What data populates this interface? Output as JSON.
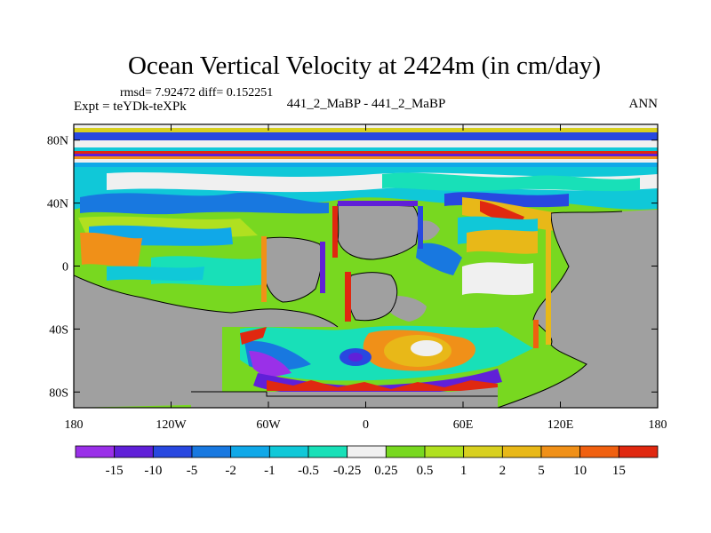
{
  "chart_data": {
    "type": "heatmap",
    "title": "Ocean Vertical Velocity at 2424m (in cm/day)",
    "stats": "rmsd= 7.92472 diff= 0.152251",
    "experiment": "Expt = teYDk-teXPk",
    "subtitle": "441_2_MaBP - 441_2_MaBP",
    "season": "ANN",
    "y_ticks": [
      {
        "value": 80,
        "label": "80N"
      },
      {
        "value": 40,
        "label": "40N"
      },
      {
        "value": 0,
        "label": "0"
      },
      {
        "value": -40,
        "label": "40S"
      },
      {
        "value": -80,
        "label": "80S"
      }
    ],
    "x_ticks": [
      {
        "value": -180,
        "label": "180"
      },
      {
        "value": -120,
        "label": "120W"
      },
      {
        "value": -60,
        "label": "60W"
      },
      {
        "value": 0,
        "label": "0"
      },
      {
        "value": 60,
        "label": "60E"
      },
      {
        "value": 120,
        "label": "120E"
      },
      {
        "value": 180,
        "label": "180"
      }
    ],
    "xlim": [
      -180,
      180
    ],
    "ylim": [
      -90,
      90
    ],
    "colorbar": {
      "colors": [
        "#9a30e8",
        "#6020d8",
        "#2848e0",
        "#1878e0",
        "#10a8e8",
        "#10c8d8",
        "#18e0b8",
        "#f0f0f0",
        "#78d820",
        "#b0e020",
        "#d8d020",
        "#e8b818",
        "#f09018",
        "#f06010",
        "#e02810"
      ],
      "levels": [
        "-15",
        "-10",
        "-5",
        "-2",
        "-1",
        "-0.5",
        "-0.25",
        "0.25",
        "0.5",
        "1",
        "2",
        "5",
        "10",
        "15"
      ]
    },
    "land_color": "#a0a0a0",
    "ocean_base_color": "#78d820"
  }
}
